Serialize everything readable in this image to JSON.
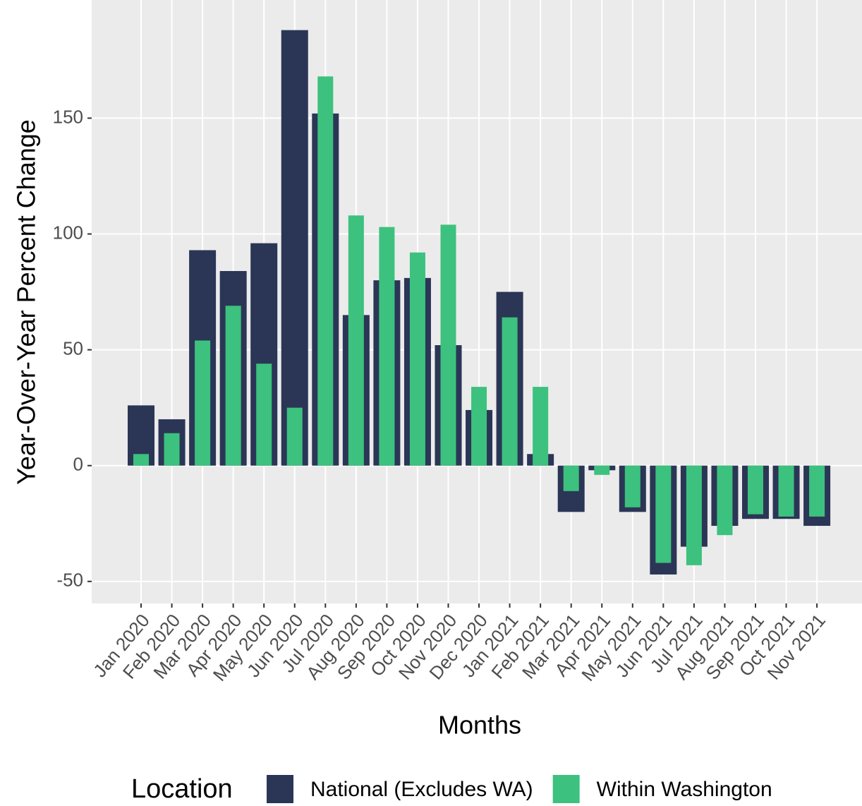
{
  "chart_data": {
    "type": "bar",
    "y_label": "Year-Over-Year Percent Change",
    "x_label": "Months",
    "legend_title": "Location",
    "legend_position": "bottom",
    "grid": true,
    "categories": [
      "Jan 2020",
      "Feb 2020",
      "Mar 2020",
      "Apr 2020",
      "May 2020",
      "Jun 2020",
      "Jul 2020",
      "Aug 2020",
      "Sep 2020",
      "Oct 2020",
      "Nov 2020",
      "Dec 2020",
      "Jan 2021",
      "Feb 2021",
      "Mar 2021",
      "Apr 2021",
      "May 2021",
      "Jun 2021",
      "Jul 2021",
      "Aug 2021",
      "Sep 2021",
      "Oct 2021",
      "Nov 2021"
    ],
    "series": [
      {
        "name": "National (Excludes WA)",
        "color": "#2b3656",
        "values": [
          26,
          20,
          93,
          84,
          96,
          188,
          152,
          65,
          80,
          81,
          52,
          24,
          75,
          5,
          -20,
          -2,
          -20,
          -47,
          -35,
          -26,
          -23,
          -23,
          -26
        ]
      },
      {
        "name": "Within Washington",
        "color": "#3dc17e",
        "values": [
          5,
          14,
          54,
          69,
          44,
          25,
          168,
          108,
          103,
          92,
          104,
          34,
          64,
          34,
          -11,
          -4,
          -18,
          -42,
          -43,
          -30,
          -21,
          -22,
          -22
        ]
      }
    ],
    "ylim": [
      -59.5,
      201
    ],
    "yticks": [
      -50,
      0,
      50,
      100,
      150
    ]
  }
}
